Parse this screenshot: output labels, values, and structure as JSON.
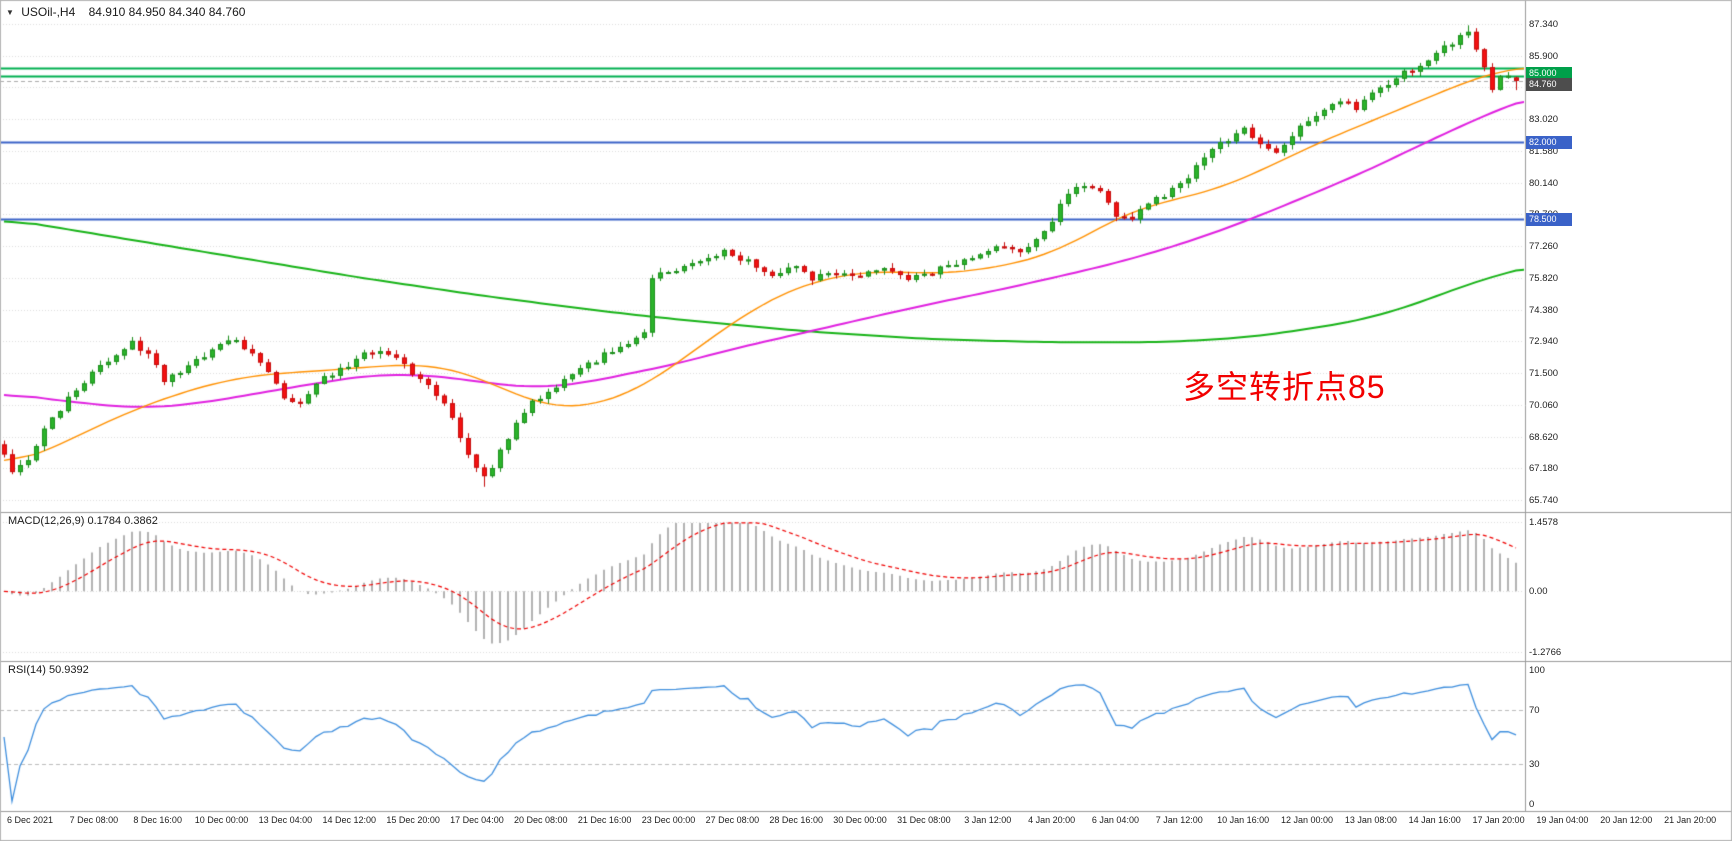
{
  "title": {
    "collapse_icon": "▼",
    "symbol": "USOil-,H4",
    "ohlc": "84.910 84.950 84.340 84.760"
  },
  "chart_data": {
    "type": "candlestick",
    "symbol": "USOil",
    "timeframe": "H4",
    "last": {
      "open": 84.91,
      "high": 84.95,
      "low": 84.34,
      "close": 84.76
    },
    "main": {
      "ylim": [
        65.74,
        87.34
      ],
      "y_ticks": [
        "87.340",
        "85.900",
        "84.460",
        "83.020",
        "81.580",
        "80.140",
        "78.700",
        "77.260",
        "75.820",
        "74.380",
        "72.940",
        "71.500",
        "70.060",
        "68.620",
        "67.180",
        "65.740"
      ],
      "hlines": [
        {
          "price": 85.35,
          "color": "#00b050",
          "tag": null,
          "tag_bg": null,
          "dy": 0
        },
        {
          "price": 85.0,
          "color": "#00b050",
          "tag": "85.000",
          "tag_bg": "#00a04a",
          "dy": -9
        },
        {
          "price": 82.0,
          "color": "#3a62c8",
          "tag": "82.000",
          "tag_bg": "#3a62c8",
          "dy": -6
        },
        {
          "price": 78.5,
          "color": "#3a62c8",
          "tag": "78.500",
          "tag_bg": "#3a62c8",
          "dy": -6
        }
      ],
      "price_tag": {
        "value": "84.760",
        "price": 84.76,
        "bg": "#4d4d4d",
        "dy": -3
      },
      "annotation": {
        "text": "多空转折点85",
        "color": "#f20000"
      },
      "candle_count": 190,
      "colors": {
        "up": "#2bb32b",
        "up_stroke": "#1d8f1d",
        "down": "#f21111",
        "down_stroke": "#c50d0d",
        "ma_fast": "#ff9100",
        "ma_mid": "#e020e0",
        "ma_slow": "#17b317"
      },
      "close_anchors": [
        [
          0,
          67.7
        ],
        [
          1,
          66.9
        ],
        [
          3,
          67.5
        ],
        [
          5,
          68.9
        ],
        [
          8,
          70.4
        ],
        [
          11,
          71.5
        ],
        [
          13,
          72.0
        ],
        [
          16,
          73.0
        ],
        [
          18,
          72.3
        ],
        [
          20,
          71.2
        ],
        [
          23,
          71.8
        ],
        [
          26,
          72.5
        ],
        [
          28,
          73.1
        ],
        [
          31,
          72.5
        ],
        [
          33,
          71.6
        ],
        [
          35,
          70.3
        ],
        [
          37,
          70.2
        ],
        [
          40,
          71.3
        ],
        [
          43,
          71.9
        ],
        [
          46,
          72.5
        ],
        [
          49,
          72.1
        ],
        [
          52,
          71.2
        ],
        [
          55,
          70.1
        ],
        [
          57,
          68.6
        ],
        [
          59,
          67.1
        ],
        [
          60,
          66.7
        ],
        [
          62,
          67.9
        ],
        [
          64,
          69.2
        ],
        [
          66,
          70.2
        ],
        [
          69,
          70.8
        ],
        [
          72,
          71.7
        ],
        [
          75,
          72.3
        ],
        [
          78,
          72.8
        ],
        [
          80,
          73.3
        ],
        [
          81,
          75.9
        ],
        [
          84,
          76.2
        ],
        [
          87,
          76.7
        ],
        [
          90,
          77.0
        ],
        [
          93,
          76.6
        ],
        [
          96,
          76.0
        ],
        [
          99,
          76.4
        ],
        [
          101,
          75.8
        ],
        [
          104,
          76.1
        ],
        [
          107,
          75.9
        ],
        [
          110,
          76.2
        ],
        [
          113,
          75.8
        ],
        [
          116,
          76.1
        ],
        [
          119,
          76.5
        ],
        [
          122,
          76.9
        ],
        [
          125,
          77.3
        ],
        [
          127,
          77.1
        ],
        [
          129,
          77.5
        ],
        [
          131,
          78.4
        ],
        [
          133,
          79.7
        ],
        [
          135,
          80.1
        ],
        [
          137,
          79.7
        ],
        [
          139,
          78.6
        ],
        [
          141,
          78.5
        ],
        [
          143,
          79.2
        ],
        [
          145,
          79.6
        ],
        [
          147,
          80.1
        ],
        [
          149,
          80.8
        ],
        [
          151,
          81.6
        ],
        [
          153,
          82.1
        ],
        [
          155,
          82.5
        ],
        [
          157,
          82.0
        ],
        [
          159,
          81.6
        ],
        [
          161,
          82.3
        ],
        [
          163,
          82.9
        ],
        [
          165,
          83.4
        ],
        [
          167,
          83.9
        ],
        [
          169,
          83.5
        ],
        [
          171,
          84.1
        ],
        [
          173,
          84.6
        ],
        [
          175,
          85.1
        ],
        [
          177,
          85.5
        ],
        [
          179,
          86.0
        ],
        [
          181,
          86.5
        ],
        [
          183,
          86.95
        ],
        [
          184,
          86.3
        ],
        [
          185,
          85.4
        ],
        [
          186,
          84.4
        ],
        [
          187,
          84.9
        ],
        [
          188,
          84.91
        ],
        [
          189,
          84.76
        ]
      ],
      "ma_fast_anchors": [
        [
          0,
          67.3
        ],
        [
          5,
          67.9
        ],
        [
          10,
          68.8
        ],
        [
          16,
          69.8
        ],
        [
          22,
          70.6
        ],
        [
          28,
          71.2
        ],
        [
          34,
          71.5
        ],
        [
          40,
          71.6
        ],
        [
          46,
          71.8
        ],
        [
          52,
          71.9
        ],
        [
          56,
          71.7
        ],
        [
          60,
          71.2
        ],
        [
          64,
          70.5
        ],
        [
          68,
          70.0
        ],
        [
          72,
          69.9
        ],
        [
          76,
          70.3
        ],
        [
          80,
          70.9
        ],
        [
          84,
          71.9
        ],
        [
          88,
          73.0
        ],
        [
          92,
          74.0
        ],
        [
          96,
          74.9
        ],
        [
          100,
          75.5
        ],
        [
          104,
          75.9
        ],
        [
          108,
          76.1
        ],
        [
          112,
          76.1
        ],
        [
          116,
          76.0
        ],
        [
          120,
          76.1
        ],
        [
          124,
          76.3
        ],
        [
          128,
          76.6
        ],
        [
          132,
          77.1
        ],
        [
          136,
          77.9
        ],
        [
          140,
          78.7
        ],
        [
          144,
          79.2
        ],
        [
          148,
          79.5
        ],
        [
          152,
          79.9
        ],
        [
          156,
          80.5
        ],
        [
          160,
          81.2
        ],
        [
          164,
          81.9
        ],
        [
          168,
          82.5
        ],
        [
          172,
          83.1
        ],
        [
          176,
          83.7
        ],
        [
          180,
          84.3
        ],
        [
          184,
          84.9
        ],
        [
          188,
          85.3
        ],
        [
          193,
          85.45
        ]
      ],
      "ma_mid_anchors": [
        [
          0,
          70.6
        ],
        [
          8,
          70.2
        ],
        [
          17,
          69.9
        ],
        [
          24,
          70.1
        ],
        [
          32,
          70.6
        ],
        [
          40,
          71.1
        ],
        [
          47,
          71.45
        ],
        [
          53,
          71.4
        ],
        [
          58,
          71.2
        ],
        [
          62,
          70.95
        ],
        [
          67,
          70.85
        ],
        [
          72,
          71.0
        ],
        [
          77,
          71.4
        ],
        [
          84,
          71.9
        ],
        [
          90,
          72.5
        ],
        [
          96,
          73.0
        ],
        [
          102,
          73.5
        ],
        [
          108,
          74.0
        ],
        [
          114,
          74.5
        ],
        [
          120,
          74.95
        ],
        [
          126,
          75.4
        ],
        [
          132,
          75.9
        ],
        [
          138,
          76.4
        ],
        [
          144,
          77.0
        ],
        [
          150,
          77.7
        ],
        [
          156,
          78.5
        ],
        [
          162,
          79.4
        ],
        [
          168,
          80.3
        ],
        [
          174,
          81.3
        ],
        [
          179,
          82.2
        ],
        [
          184,
          83.0
        ],
        [
          189,
          83.8
        ],
        [
          193,
          84.2
        ]
      ],
      "ma_slow_anchors": [
        [
          0,
          78.5
        ],
        [
          15,
          77.6
        ],
        [
          30,
          76.7
        ],
        [
          45,
          75.8
        ],
        [
          60,
          75.0
        ],
        [
          75,
          74.3
        ],
        [
          85,
          73.9
        ],
        [
          100,
          73.4
        ],
        [
          115,
          73.05
        ],
        [
          130,
          72.9
        ],
        [
          145,
          72.9
        ],
        [
          155,
          73.1
        ],
        [
          165,
          73.6
        ],
        [
          172,
          74.1
        ],
        [
          180,
          75.1
        ],
        [
          185,
          75.8
        ],
        [
          193,
          76.5
        ]
      ]
    },
    "macd": {
      "label": "MACD(12,26,9) 0.1784 0.3862",
      "params": [
        12,
        26,
        9
      ],
      "current_values": [
        0.1784,
        0.3862
      ],
      "ylim": [
        -1.2766,
        1.4578
      ],
      "y_ticks": [
        "1.4578",
        "0.00",
        "-1.2766"
      ],
      "y_tick_values": [
        1.4578,
        0,
        -1.2766
      ],
      "colors": {
        "histogram": "#b3b3b3",
        "signal": "#f00000"
      }
    },
    "rsi": {
      "label": "RSI(14) 50.9392",
      "period": 14,
      "current_value": 50.9392,
      "ylim": [
        0,
        100
      ],
      "levels": [
        70,
        30
      ],
      "y_ticks": [
        "100",
        "70",
        "30",
        "0"
      ],
      "y_tick_values": [
        100,
        70,
        30,
        0
      ],
      "colors": {
        "line": "#3f8fde",
        "level": "#bbbbbb"
      }
    },
    "x_labels": [
      "6 Dec 2021",
      "7 Dec 08:00",
      "8 Dec 16:00",
      "10 Dec 00:00",
      "13 Dec 04:00",
      "14 Dec 12:00",
      "15 Dec 20:00",
      "17 Dec 04:00",
      "20 Dec 08:00",
      "21 Dec 16:00",
      "23 Dec 00:00",
      "27 Dec 08:00",
      "28 Dec 16:00",
      "30 Dec 00:00",
      "31 Dec 08:00",
      "3 Jan 12:00",
      "4 Jan 20:00",
      "6 Jan 04:00",
      "7 Jan 12:00",
      "10 Jan 16:00",
      "12 Jan 00:00",
      "13 Jan 08:00",
      "14 Jan 16:00",
      "17 Jan 20:00",
      "19 Jan 04:00",
      "20 Jan 12:00",
      "21 Jan 20:00"
    ]
  }
}
